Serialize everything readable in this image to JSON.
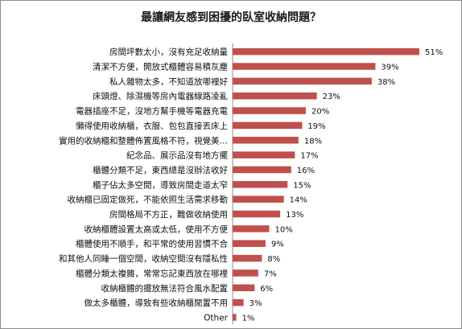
{
  "chart_data": {
    "type": "bar",
    "orientation": "horizontal",
    "title": "最讓網友感到困擾的臥室收納問題？",
    "xlabel": "",
    "ylabel": "",
    "xlim": [
      0,
      51
    ],
    "grid": false,
    "legend": "none",
    "bar_color": "#c0504d",
    "categories": [
      "房間坪數太小，沒有充足收納量",
      "清潔不方便，開放式櫃體容易積灰塵",
      "私人雜物太多，不知道放哪裡好",
      "床頭燈、除濕機等房內電器線路凌亂",
      "電器插座不足，沒地方幫手機等電器充電",
      "懶得使用收納櫃，衣服、包包直接丟床上",
      "實用的收納櫃和整體佈置風格不符，視覺美…",
      "紀念品、展示品沒有地方擺",
      "櫃體分類不足，東西總是沒辦法收好",
      "櫃子佔太多空間，導致房間走道太窄",
      "收納櫃已固定做死，不能依照生活需求移動",
      "房間格局不方正，難做收納使用",
      "收納櫃體設置太高或太低，使用不方便",
      "櫃體使用不順手，和平常的使用習慣不合",
      "和其他人同睡一個空間，收納空間沒有隱私性",
      "櫃體分類太複雜，常常忘記東西放在哪裡",
      "收納櫃體的擺放無法符合風水配置",
      "做太多櫃體，導致有些收納櫃閒置不用",
      "Other"
    ],
    "values": [
      51,
      39,
      38,
      23,
      20,
      19,
      18,
      17,
      16,
      15,
      14,
      13,
      10,
      9,
      8,
      7,
      6,
      3,
      1
    ],
    "value_labels": [
      "51%",
      "39%",
      "38%",
      "23%",
      "20%",
      "19%",
      "18%",
      "17%",
      "16%",
      "15%",
      "14%",
      "13%",
      "10%",
      "9%",
      "8%",
      "7%",
      "6%",
      "3%",
      "1%"
    ]
  }
}
